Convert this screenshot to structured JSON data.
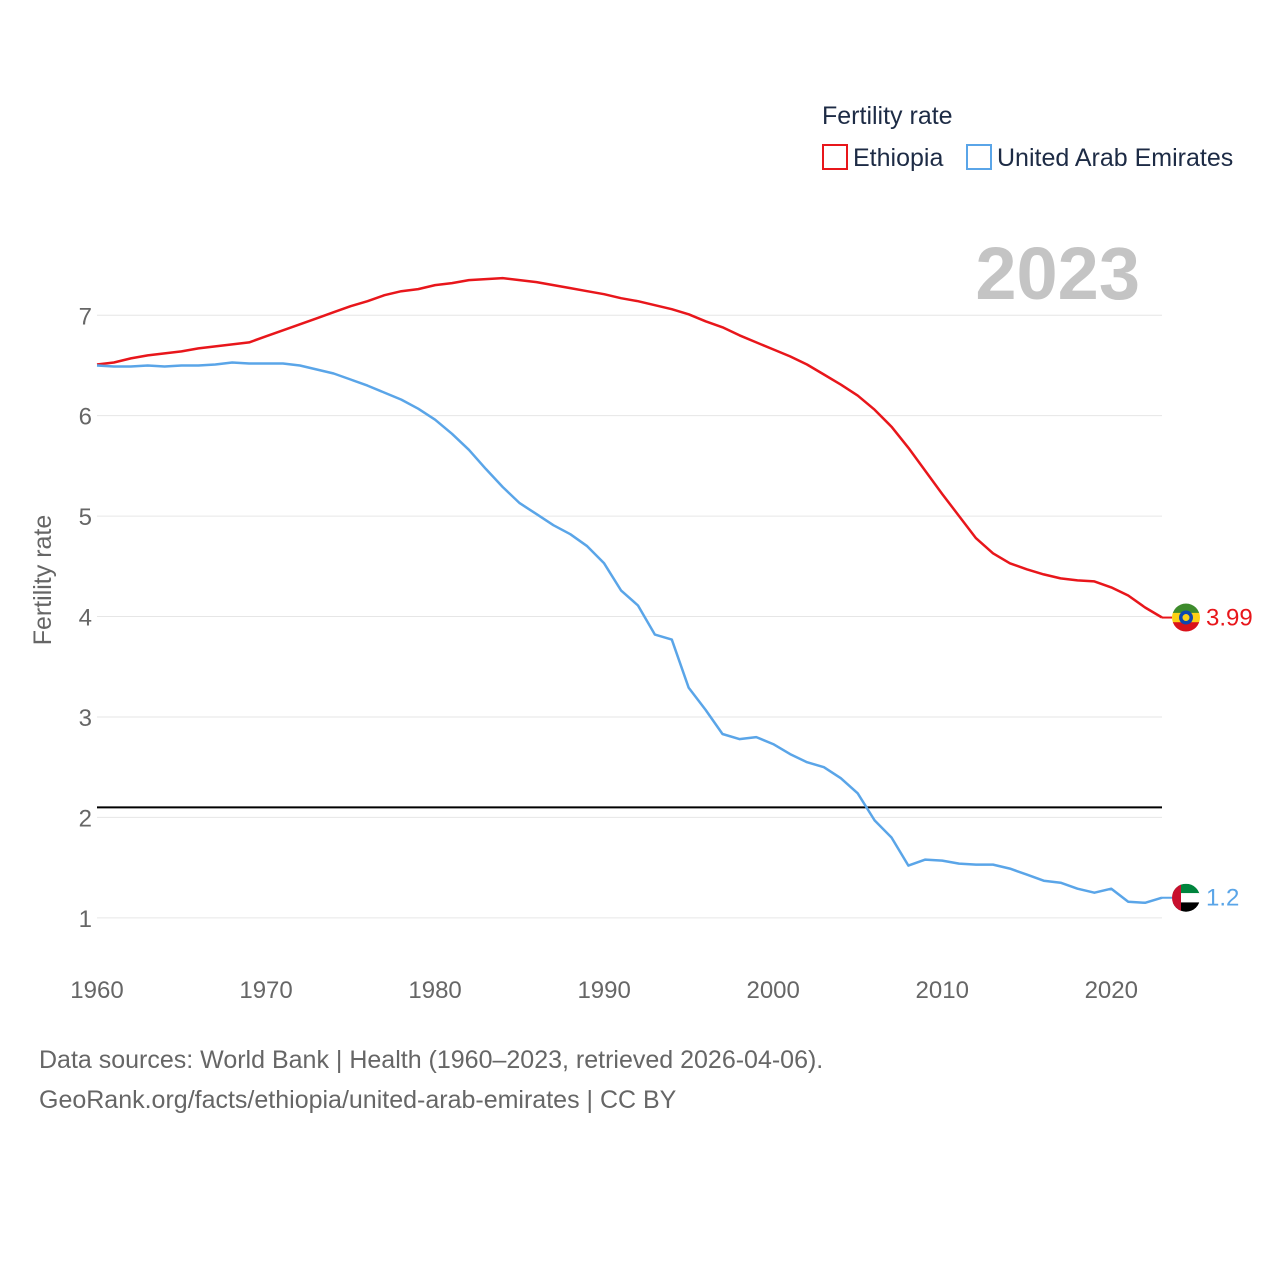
{
  "chart_data": {
    "type": "line",
    "title": "Fertility rate",
    "xlabel": "",
    "ylabel": "Fertility rate",
    "current_year": "2023",
    "xlim": [
      1960,
      2023
    ],
    "ylim": [
      0.6,
      7.6
    ],
    "x_ticks": [
      1960,
      1970,
      1980,
      1990,
      2000,
      2010,
      2020
    ],
    "y_ticks": [
      1,
      2,
      3,
      4,
      5,
      6,
      7
    ],
    "reference_line": {
      "value": 2.1
    },
    "legend": {
      "title": "Fertility rate",
      "placement": "top-right"
    },
    "x": [
      1960,
      1961,
      1962,
      1963,
      1964,
      1965,
      1966,
      1967,
      1968,
      1969,
      1970,
      1971,
      1972,
      1973,
      1974,
      1975,
      1976,
      1977,
      1978,
      1979,
      1980,
      1981,
      1982,
      1983,
      1984,
      1985,
      1986,
      1987,
      1988,
      1989,
      1990,
      1991,
      1992,
      1993,
      1994,
      1995,
      1996,
      1997,
      1998,
      1999,
      2000,
      2001,
      2002,
      2003,
      2004,
      2005,
      2006,
      2007,
      2008,
      2009,
      2010,
      2011,
      2012,
      2013,
      2014,
      2015,
      2016,
      2017,
      2018,
      2019,
      2020,
      2021,
      2022,
      2023
    ],
    "series": [
      {
        "name": "Ethiopia",
        "color": "#e8161b",
        "end_label": "3.99",
        "values": [
          6.51,
          6.53,
          6.57,
          6.6,
          6.62,
          6.64,
          6.67,
          6.69,
          6.71,
          6.73,
          6.79,
          6.85,
          6.91,
          6.97,
          7.03,
          7.09,
          7.14,
          7.2,
          7.24,
          7.26,
          7.3,
          7.32,
          7.35,
          7.36,
          7.37,
          7.35,
          7.33,
          7.3,
          7.27,
          7.24,
          7.21,
          7.17,
          7.14,
          7.1,
          7.06,
          7.01,
          6.94,
          6.88,
          6.8,
          6.73,
          6.66,
          6.59,
          6.51,
          6.41,
          6.31,
          6.2,
          6.06,
          5.89,
          5.68,
          5.45,
          5.22,
          5.0,
          4.78,
          4.63,
          4.53,
          4.47,
          4.42,
          4.38,
          4.36,
          4.35,
          4.29,
          4.21,
          4.09,
          3.99
        ]
      },
      {
        "name": "United Arab Emirates",
        "color": "#5aa5e8",
        "end_label": "1.2",
        "values": [
          6.5,
          6.49,
          6.49,
          6.5,
          6.49,
          6.5,
          6.5,
          6.51,
          6.53,
          6.52,
          6.52,
          6.52,
          6.5,
          6.46,
          6.42,
          6.36,
          6.3,
          6.23,
          6.16,
          6.07,
          5.96,
          5.82,
          5.66,
          5.47,
          5.29,
          5.13,
          5.02,
          4.91,
          4.82,
          4.7,
          4.53,
          4.26,
          4.11,
          3.82,
          3.77,
          3.29,
          3.07,
          2.83,
          2.78,
          2.8,
          2.73,
          2.63,
          2.55,
          2.5,
          2.39,
          2.24,
          1.97,
          1.8,
          1.52,
          1.58,
          1.57,
          1.54,
          1.53,
          1.53,
          1.49,
          1.43,
          1.37,
          1.35,
          1.29,
          1.25,
          1.29,
          1.16,
          1.15,
          1.2
        ]
      }
    ]
  },
  "source": {
    "line1": "Data sources: World Bank | Health (1960–2023, retrieved 2026-04-06).",
    "line2": "GeoRank.org/facts/ethiopia/united-arab-emirates | CC BY"
  }
}
